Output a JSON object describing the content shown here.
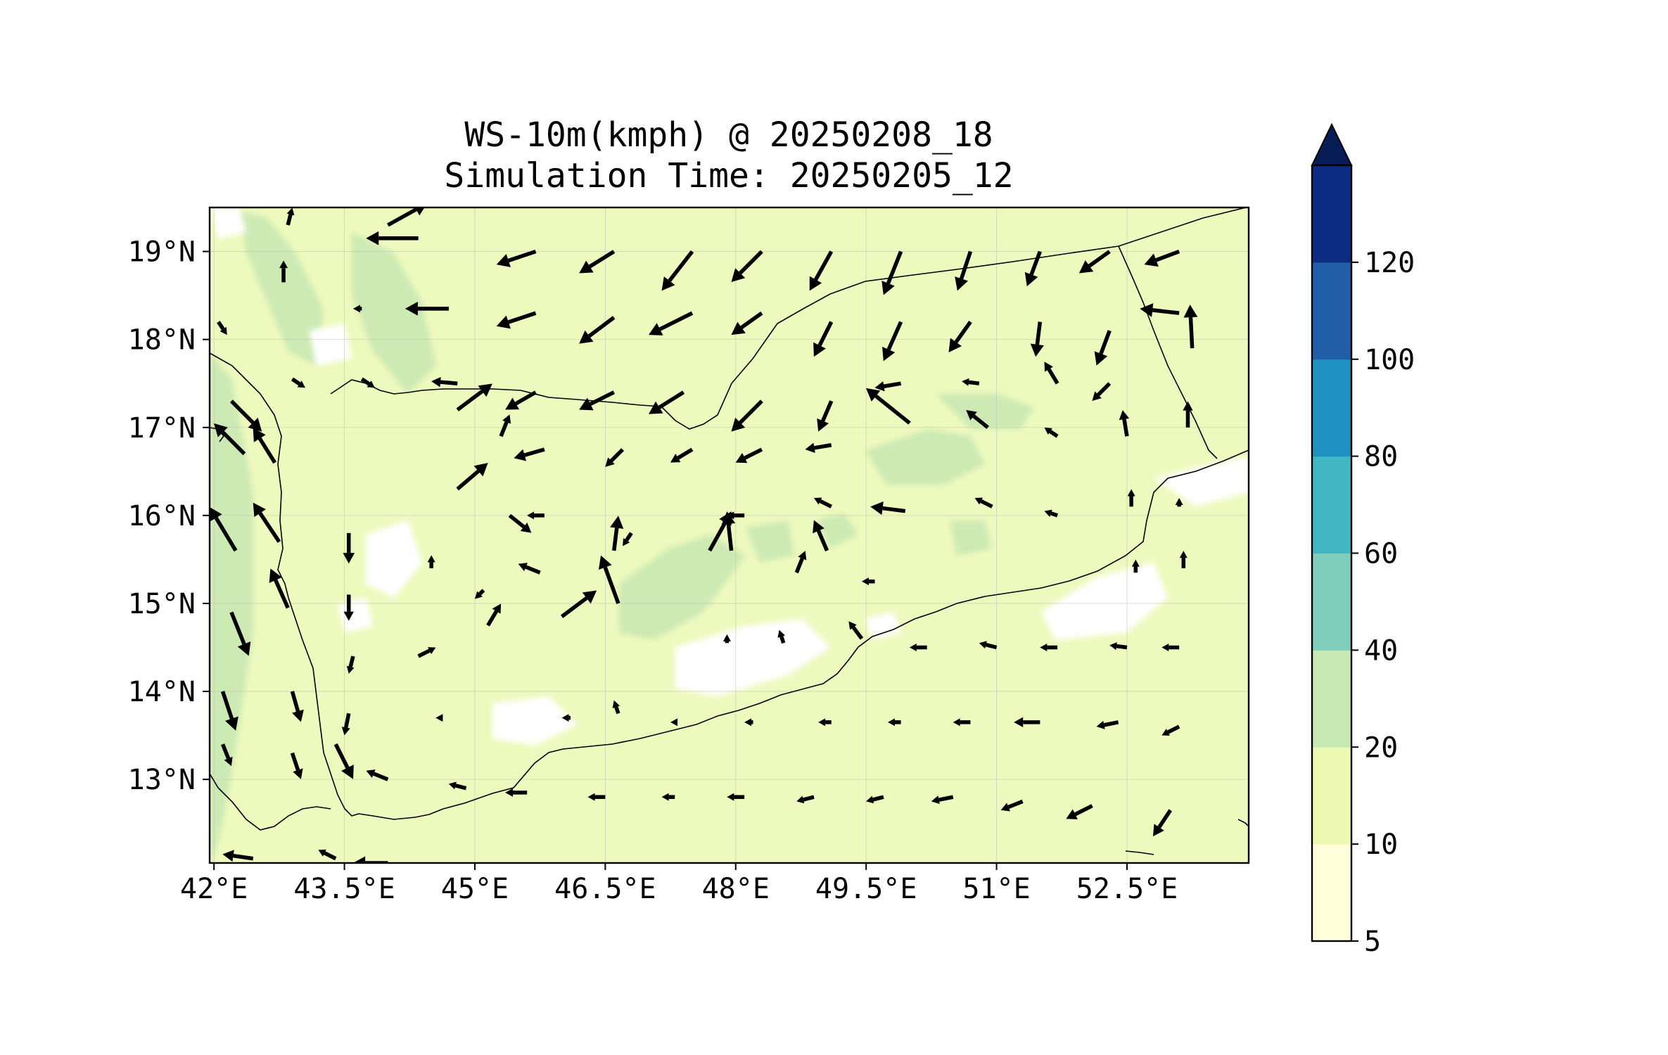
{
  "title": {
    "line1": "WS-10m(kmph) @ 20250208_18",
    "line2": "Simulation Time: 20250205_12"
  },
  "map": {
    "lon_range": [
      41.95,
      53.9
    ],
    "lat_range": [
      12.05,
      19.5
    ],
    "lon_ticks": [
      {
        "value": 42.0,
        "label": "42°E"
      },
      {
        "value": 43.5,
        "label": "43.5°E"
      },
      {
        "value": 45.0,
        "label": "45°E"
      },
      {
        "value": 46.5,
        "label": "46.5°E"
      },
      {
        "value": 48.0,
        "label": "48°E"
      },
      {
        "value": 49.5,
        "label": "49.5°E"
      },
      {
        "value": 51.0,
        "label": "51°E"
      },
      {
        "value": 52.5,
        "label": "52.5°E"
      }
    ],
    "lat_ticks": [
      {
        "value": 19,
        "label": "19°N"
      },
      {
        "value": 18,
        "label": "18°N"
      },
      {
        "value": 17,
        "label": "17°N"
      },
      {
        "value": 16,
        "label": "16°N"
      },
      {
        "value": 15,
        "label": "15°N"
      },
      {
        "value": 14,
        "label": "14°N"
      },
      {
        "value": 13,
        "label": "13°N"
      }
    ],
    "gridlines": true,
    "background_color": "#eef9be"
  },
  "colorbar": {
    "levels": [
      "5",
      "10",
      "20",
      "40",
      "60",
      "80",
      "100",
      "120"
    ],
    "colors": [
      "#ffffd9",
      "#edf8b1",
      "#c7e9b4",
      "#7fcdbb",
      "#41b6c4",
      "#1d91c0",
      "#225ea8",
      "#0c2c84"
    ],
    "extend": "max",
    "extend_color": "#081d58"
  },
  "colors": {
    "band_10_20": "#eef9be",
    "band_20_40": "#cdeab4",
    "band_5_10": "#ffffff",
    "band_40_60": "#7fcdbb",
    "coastline": "#000000",
    "arrow": "#000000"
  },
  "wind_field": {
    "description_units": "kmph",
    "vectors": [
      {
        "lon": 44.35,
        "lat": 19.15,
        "u": -12,
        "v": 0
      },
      {
        "lon": 45.7,
        "lat": 19.0,
        "u": -9,
        "v": -3
      },
      {
        "lon": 46.6,
        "lat": 19.0,
        "u": -8,
        "v": -5
      },
      {
        "lon": 47.5,
        "lat": 19.0,
        "u": -7,
        "v": -9
      },
      {
        "lon": 48.3,
        "lat": 19.0,
        "u": -7,
        "v": -7
      },
      {
        "lon": 49.1,
        "lat": 19.0,
        "u": -5,
        "v": -9
      },
      {
        "lon": 49.9,
        "lat": 19.0,
        "u": -4,
        "v": -10
      },
      {
        "lon": 50.7,
        "lat": 19.0,
        "u": -3,
        "v": -9
      },
      {
        "lon": 51.5,
        "lat": 19.0,
        "u": -3,
        "v": -8
      },
      {
        "lon": 52.3,
        "lat": 19.0,
        "u": -7,
        "v": -5
      },
      {
        "lon": 53.1,
        "lat": 19.0,
        "u": -8,
        "v": -3
      },
      {
        "lon": 44.7,
        "lat": 18.35,
        "u": -10,
        "v": 0
      },
      {
        "lon": 45.7,
        "lat": 18.3,
        "u": -9,
        "v": -3
      },
      {
        "lon": 46.6,
        "lat": 18.25,
        "u": -8,
        "v": -6
      },
      {
        "lon": 47.5,
        "lat": 18.3,
        "u": -10,
        "v": -5
      },
      {
        "lon": 48.3,
        "lat": 18.3,
        "u": -7,
        "v": -5
      },
      {
        "lon": 49.1,
        "lat": 18.2,
        "u": -4,
        "v": -8
      },
      {
        "lon": 49.9,
        "lat": 18.2,
        "u": -4,
        "v": -9
      },
      {
        "lon": 50.7,
        "lat": 18.2,
        "u": -5,
        "v": -7
      },
      {
        "lon": 51.5,
        "lat": 18.2,
        "u": -1,
        "v": -8
      },
      {
        "lon": 52.3,
        "lat": 18.1,
        "u": -3,
        "v": -8
      },
      {
        "lon": 53.1,
        "lat": 18.3,
        "u": -9,
        "v": 1
      },
      {
        "lon": 53.25,
        "lat": 17.9,
        "u": -0.5,
        "v": 10
      },
      {
        "lon": 44.8,
        "lat": 17.5,
        "u": -6,
        "v": 0.5
      },
      {
        "lon": 45.7,
        "lat": 17.4,
        "u": -7,
        "v": -4
      },
      {
        "lon": 46.6,
        "lat": 17.4,
        "u": -8,
        "v": -4
      },
      {
        "lon": 47.4,
        "lat": 17.4,
        "u": -8,
        "v": -5
      },
      {
        "lon": 48.3,
        "lat": 17.3,
        "u": -7,
        "v": -7
      },
      {
        "lon": 49.1,
        "lat": 17.3,
        "u": -3,
        "v": -7
      },
      {
        "lon": 49.9,
        "lat": 17.5,
        "u": -6,
        "v": -1
      },
      {
        "lon": 50.8,
        "lat": 17.5,
        "u": -4,
        "v": 0.5
      },
      {
        "lon": 51.7,
        "lat": 17.5,
        "u": -3,
        "v": 5
      },
      {
        "lon": 52.3,
        "lat": 17.5,
        "u": -4,
        "v": -4
      },
      {
        "lon": 53.2,
        "lat": 17.0,
        "u": 0,
        "v": 6
      },
      {
        "lon": 44.8,
        "lat": 17.2,
        "u": 8,
        "v": 6
      },
      {
        "lon": 45.3,
        "lat": 16.9,
        "u": 2,
        "v": 5
      },
      {
        "lon": 45.8,
        "lat": 16.75,
        "u": -7,
        "v": -2
      },
      {
        "lon": 46.7,
        "lat": 16.75,
        "u": -4,
        "v": -4
      },
      {
        "lon": 47.5,
        "lat": 16.75,
        "u": -5,
        "v": -3
      },
      {
        "lon": 48.3,
        "lat": 16.75,
        "u": -6,
        "v": -3
      },
      {
        "lon": 49.1,
        "lat": 16.8,
        "u": -6,
        "v": -1
      },
      {
        "lon": 50.0,
        "lat": 17.05,
        "u": -10,
        "v": 8
      },
      {
        "lon": 50.9,
        "lat": 17.0,
        "u": -5,
        "v": 4
      },
      {
        "lon": 51.7,
        "lat": 16.9,
        "u": -3,
        "v": 2
      },
      {
        "lon": 52.5,
        "lat": 16.9,
        "u": -1,
        "v": 6
      },
      {
        "lon": 44.8,
        "lat": 16.3,
        "u": 7,
        "v": 6
      },
      {
        "lon": 45.4,
        "lat": 16.0,
        "u": 5,
        "v": -4
      },
      {
        "lon": 45.8,
        "lat": 16.0,
        "u": -4,
        "v": 0
      },
      {
        "lon": 46.6,
        "lat": 15.6,
        "u": 1,
        "v": 8
      },
      {
        "lon": 46.8,
        "lat": 15.8,
        "u": -2,
        "v": -3
      },
      {
        "lon": 47.7,
        "lat": 15.6,
        "u": 5,
        "v": 9
      },
      {
        "lon": 47.95,
        "lat": 15.6,
        "u": -1,
        "v": 9
      },
      {
        "lon": 48.1,
        "lat": 16.0,
        "u": -4,
        "v": 0
      },
      {
        "lon": 48.7,
        "lat": 15.35,
        "u": 2,
        "v": 5
      },
      {
        "lon": 49.05,
        "lat": 15.6,
        "u": -3,
        "v": 7
      },
      {
        "lon": 49.1,
        "lat": 16.1,
        "u": -4,
        "v": 2
      },
      {
        "lon": 49.95,
        "lat": 16.05,
        "u": -8,
        "v": 1
      },
      {
        "lon": 50.95,
        "lat": 16.1,
        "u": -4,
        "v": 2
      },
      {
        "lon": 51.7,
        "lat": 16.0,
        "u": -3,
        "v": 1
      },
      {
        "lon": 52.55,
        "lat": 16.1,
        "u": 0,
        "v": 4
      },
      {
        "lon": 53.1,
        "lat": 16.1,
        "u": 0,
        "v": 2
      },
      {
        "lon": 43.55,
        "lat": 15.8,
        "u": 0,
        "v": -7
      },
      {
        "lon": 44.5,
        "lat": 15.4,
        "u": 0,
        "v": 3
      },
      {
        "lon": 45.1,
        "lat": 15.15,
        "u": -2,
        "v": -2
      },
      {
        "lon": 45.75,
        "lat": 15.35,
        "u": -5,
        "v": 2
      },
      {
        "lon": 46.65,
        "lat": 15.0,
        "u": -4,
        "v": 11
      },
      {
        "lon": 46.0,
        "lat": 14.85,
        "u": 8,
        "v": 6
      },
      {
        "lon": 43.55,
        "lat": 15.1,
        "u": 0,
        "v": -6
      },
      {
        "lon": 45.15,
        "lat": 14.75,
        "u": 3,
        "v": 5
      },
      {
        "lon": 49.6,
        "lat": 15.25,
        "u": -3,
        "v": 0
      },
      {
        "lon": 52.6,
        "lat": 15.35,
        "u": 0,
        "v": 3
      },
      {
        "lon": 53.15,
        "lat": 15.4,
        "u": 0,
        "v": 4
      },
      {
        "lon": 43.6,
        "lat": 14.4,
        "u": -1,
        "v": -4
      },
      {
        "lon": 44.35,
        "lat": 14.4,
        "u": 4,
        "v": 2
      },
      {
        "lon": 47.9,
        "lat": 14.55,
        "u": 0,
        "v": 2
      },
      {
        "lon": 48.55,
        "lat": 14.55,
        "u": -1,
        "v": 3
      },
      {
        "lon": 49.45,
        "lat": 14.6,
        "u": -3,
        "v": 4
      },
      {
        "lon": 50.2,
        "lat": 14.5,
        "u": -4,
        "v": 0
      },
      {
        "lon": 51.0,
        "lat": 14.5,
        "u": -4,
        "v": 1
      },
      {
        "lon": 51.7,
        "lat": 14.5,
        "u": -4,
        "v": 0
      },
      {
        "lon": 52.5,
        "lat": 14.5,
        "u": -4,
        "v": 0.5
      },
      {
        "lon": 53.1,
        "lat": 14.5,
        "u": -4,
        "v": 0
      },
      {
        "lon": 43.55,
        "lat": 13.75,
        "u": -1,
        "v": -5
      },
      {
        "lon": 44.6,
        "lat": 13.7,
        "u": -1,
        "v": 0
      },
      {
        "lon": 46.1,
        "lat": 13.7,
        "u": -2,
        "v": 0
      },
      {
        "lon": 46.65,
        "lat": 13.75,
        "u": -1,
        "v": 3
      },
      {
        "lon": 47.3,
        "lat": 13.65,
        "u": -1,
        "v": 0
      },
      {
        "lon": 48.2,
        "lat": 13.65,
        "u": -2,
        "v": 0
      },
      {
        "lon": 49.1,
        "lat": 13.65,
        "u": -3,
        "v": 0
      },
      {
        "lon": 49.9,
        "lat": 13.65,
        "u": -3,
        "v": 0
      },
      {
        "lon": 50.7,
        "lat": 13.65,
        "u": -4,
        "v": 0
      },
      {
        "lon": 51.5,
        "lat": 13.65,
        "u": -6,
        "v": 0
      },
      {
        "lon": 52.4,
        "lat": 13.65,
        "u": -5,
        "v": -1
      },
      {
        "lon": 53.1,
        "lat": 13.6,
        "u": -4,
        "v": -2
      },
      {
        "lon": 44.0,
        "lat": 13.0,
        "u": -5,
        "v": 2
      },
      {
        "lon": 44.9,
        "lat": 12.9,
        "u": -4,
        "v": 1
      },
      {
        "lon": 45.6,
        "lat": 12.85,
        "u": -5,
        "v": 0
      },
      {
        "lon": 46.5,
        "lat": 12.8,
        "u": -4,
        "v": 0
      },
      {
        "lon": 47.3,
        "lat": 12.8,
        "u": -3,
        "v": 0
      },
      {
        "lon": 48.1,
        "lat": 12.8,
        "u": -4,
        "v": 0
      },
      {
        "lon": 48.9,
        "lat": 12.8,
        "u": -4,
        "v": -1
      },
      {
        "lon": 49.7,
        "lat": 12.8,
        "u": -4,
        "v": -1
      },
      {
        "lon": 50.5,
        "lat": 12.8,
        "u": -5,
        "v": -1
      },
      {
        "lon": 51.3,
        "lat": 12.75,
        "u": -5,
        "v": -2
      },
      {
        "lon": 52.1,
        "lat": 12.7,
        "u": -6,
        "v": -3
      },
      {
        "lon": 53.0,
        "lat": 12.65,
        "u": -4,
        "v": -6
      },
      {
        "lon": 42.2,
        "lat": 17.3,
        "u": 7,
        "v": -7
      },
      {
        "lon": 42.35,
        "lat": 16.7,
        "u": -7,
        "v": 7
      },
      {
        "lon": 42.7,
        "lat": 16.6,
        "u": -5,
        "v": 8
      },
      {
        "lon": 42.25,
        "lat": 15.6,
        "u": -6,
        "v": 10
      },
      {
        "lon": 42.75,
        "lat": 15.7,
        "u": -6,
        "v": 9
      },
      {
        "lon": 42.2,
        "lat": 14.9,
        "u": 4,
        "v": -10
      },
      {
        "lon": 42.85,
        "lat": 14.95,
        "u": -4,
        "v": 9
      },
      {
        "lon": 42.1,
        "lat": 14.0,
        "u": 3,
        "v": -9
      },
      {
        "lon": 42.9,
        "lat": 14.0,
        "u": 2,
        "v": -7
      },
      {
        "lon": 42.1,
        "lat": 13.4,
        "u": 2,
        "v": -5
      },
      {
        "lon": 42.9,
        "lat": 13.3,
        "u": 2,
        "v": -6
      },
      {
        "lon": 43.4,
        "lat": 13.4,
        "u": 4,
        "v": -8
      },
      {
        "lon": 42.8,
        "lat": 18.65,
        "u": 0,
        "v": 5
      },
      {
        "lon": 44.0,
        "lat": 19.3,
        "u": 9,
        "v": 5
      },
      {
        "lon": 42.85,
        "lat": 19.3,
        "u": 1,
        "v": 4
      },
      {
        "lon": 42.9,
        "lat": 17.55,
        "u": 3,
        "v": -2
      },
      {
        "lon": 43.7,
        "lat": 17.55,
        "u": 3,
        "v": -2
      },
      {
        "lon": 43.7,
        "lat": 18.35,
        "u": -2,
        "v": 0
      },
      {
        "lon": 42.05,
        "lat": 18.2,
        "u": 2,
        "v": -3
      },
      {
        "lon": 42.45,
        "lat": 12.1,
        "u": -7,
        "v": 1
      },
      {
        "lon": 43.4,
        "lat": 12.1,
        "u": -4,
        "v": 2
      },
      {
        "lon": 44.0,
        "lat": 12.05,
        "u": -8,
        "v": 0
      }
    ]
  }
}
